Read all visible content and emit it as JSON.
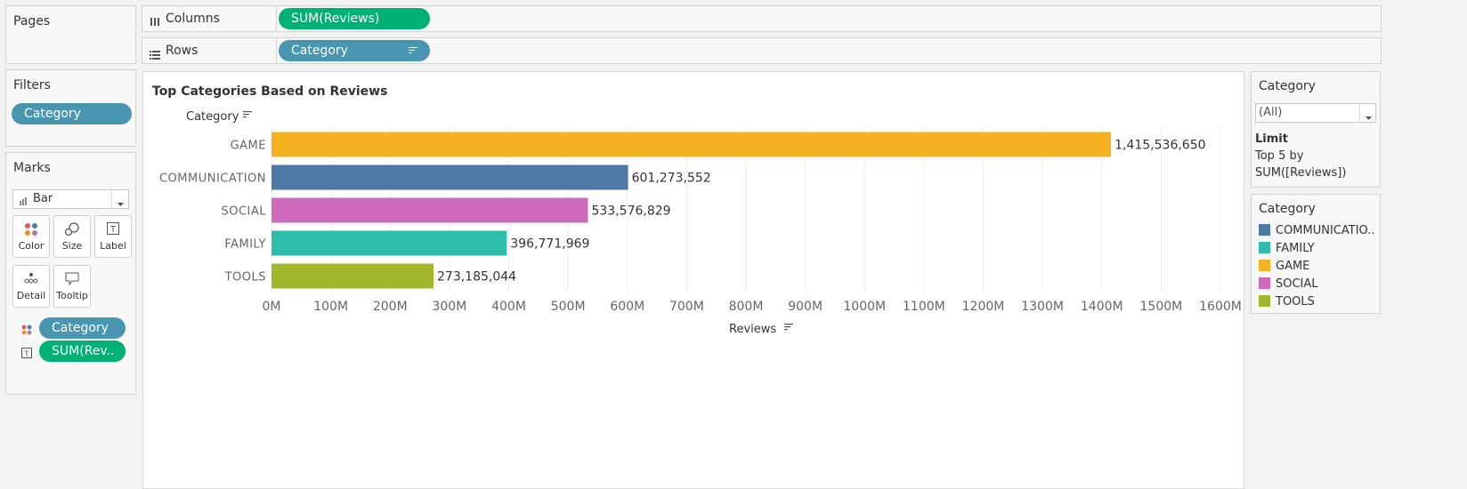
{
  "pages": {
    "title": "Pages"
  },
  "columns_shelf": {
    "icon": "columns-icon",
    "label": "Columns",
    "pill": "SUM(Reviews)"
  },
  "rows_shelf": {
    "icon": "rows-icon",
    "label": "Rows",
    "pill": "Category"
  },
  "filters": {
    "title": "Filters",
    "pill": "Category"
  },
  "marks": {
    "title": "Marks",
    "type_select": "Bar",
    "buttons": [
      {
        "label": "Color",
        "icon": "color-icon"
      },
      {
        "label": "Size",
        "icon": "size-icon"
      },
      {
        "label": "Label",
        "icon": "label-icon"
      },
      {
        "label": "Detail",
        "icon": "detail-icon"
      },
      {
        "label": "Tooltip",
        "icon": "tooltip-icon"
      }
    ],
    "pills": [
      {
        "label": "Category",
        "icon": "color-icon"
      },
      {
        "label": "SUM(Rev..",
        "icon": "label-icon"
      }
    ]
  },
  "filter_card": {
    "title": "Category",
    "dropdown_value": "(All)",
    "limit_title": "Limit",
    "limit_line1": "Top 5 by",
    "limit_line2": "SUM([Reviews])"
  },
  "legend_card": {
    "title": "Category",
    "items": [
      {
        "label": "COMMUNICATIO..",
        "color": "#4e79a7"
      },
      {
        "label": "FAMILY",
        "color": "#2ebcab"
      },
      {
        "label": "GAME",
        "color": "#f5b321"
      },
      {
        "label": "SOCIAL",
        "color": "#cf69bb"
      },
      {
        "label": "TOOLS",
        "color": "#a2b62c"
      }
    ]
  },
  "chart_data": {
    "type": "bar",
    "orientation": "horizontal",
    "title": "Top Categories Based on Reviews",
    "ylabel": "Category",
    "xlabel": "Reviews",
    "categories": [
      "GAME",
      "COMMUNICATION",
      "SOCIAL",
      "FAMILY",
      "TOOLS"
    ],
    "values": [
      1415536650,
      601273552,
      533576829,
      396771969,
      273185044
    ],
    "data_labels": [
      "1,415,536,650",
      "601,273,552",
      "533,576,829",
      "396,771,969",
      "273,185,044"
    ],
    "colors": [
      "#f5b321",
      "#4e79a7",
      "#cf69bb",
      "#2ebcab",
      "#a2b62c"
    ],
    "xlim": [
      0,
      1600000000
    ],
    "xticks": [
      0,
      100000000,
      200000000,
      300000000,
      400000000,
      500000000,
      600000000,
      700000000,
      800000000,
      900000000,
      1000000000,
      1100000000,
      1200000000,
      1300000000,
      1400000000,
      1500000000,
      1600000000
    ],
    "xtick_labels": [
      "0M",
      "100M",
      "200M",
      "300M",
      "400M",
      "500M",
      "600M",
      "700M",
      "800M",
      "900M",
      "1000M",
      "1100M",
      "1200M",
      "1300M",
      "1400M",
      "1500M",
      "1600M"
    ],
    "grid": true,
    "legend": "right"
  }
}
